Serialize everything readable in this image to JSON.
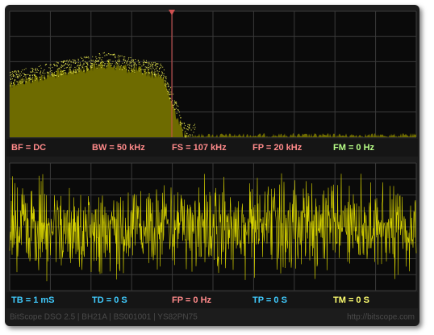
{
  "spectrum_status": [
    "BF = DC",
    "BW = 50 kHz",
    "FS = 107 kHz",
    "FP = 20 kHz",
    "FM = 0 Hz"
  ],
  "time_status": [
    "TB = 1 mS",
    "TD = 0 S",
    "FP = 0 Hz",
    "TP = 0 S",
    "TM = 0 S"
  ],
  "footer": {
    "product": "BitScope DSO 2.5 | BH21A | BS001001 | YS82PN75",
    "url": "http://bitscope.com"
  }
}
